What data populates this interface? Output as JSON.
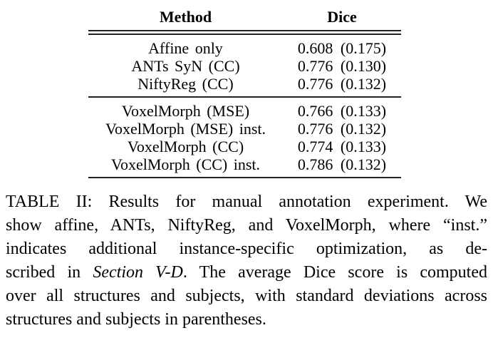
{
  "colors": {
    "background": "#ffffff",
    "text": "#000000",
    "rule": "#222222"
  },
  "table": {
    "columns": [
      "Method",
      "Dice"
    ],
    "groups": [
      {
        "rows": [
          {
            "method": "Affine only",
            "dice": "0.608 (0.175)"
          },
          {
            "method": "ANTs SyN (CC)",
            "dice": "0.776 (0.130)"
          },
          {
            "method": "NiftyReg (CC)",
            "dice": "0.776 (0.132)"
          }
        ]
      },
      {
        "rows": [
          {
            "method": "VoxelMorph (MSE)",
            "dice": "0.766 (0.133)"
          },
          {
            "method": "VoxelMorph (MSE) inst.",
            "dice": "0.776 (0.132)"
          },
          {
            "method": "VoxelMorph (CC)",
            "dice": "0.774 (0.133)"
          },
          {
            "method": "VoxelMorph (CC) inst.",
            "dice": "0.786 (0.132)"
          }
        ]
      }
    ]
  },
  "caption": {
    "label": "TABLE II",
    "lines": [
      [
        {
          "t": "TABLE II: Results for manual annotation experiment. We"
        }
      ],
      [
        {
          "t": "show affine, ANTs, NiftyReg, and VoxelMorph, where “inst.”"
        }
      ],
      [
        {
          "t": "indicates additional instance-specific optimization, as de-"
        }
      ],
      [
        {
          "t": "scribed in "
        },
        {
          "t": "Section V-D",
          "italic": true
        },
        {
          "t": ". The average Dice score is computed"
        }
      ],
      [
        {
          "t": "over all structures and subjects, with standard deviations across"
        }
      ],
      [
        {
          "t": "structures and subjects in parentheses."
        }
      ]
    ]
  }
}
